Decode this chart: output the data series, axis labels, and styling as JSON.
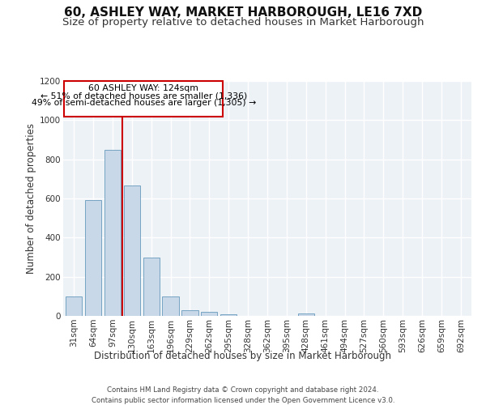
{
  "title": "60, ASHLEY WAY, MARKET HARBOROUGH, LE16 7XD",
  "subtitle": "Size of property relative to detached houses in Market Harborough",
  "xlabel": "Distribution of detached houses by size in Market Harborough",
  "ylabel": "Number of detached properties",
  "footer_line1": "Contains HM Land Registry data © Crown copyright and database right 2024.",
  "footer_line2": "Contains public sector information licensed under the Open Government Licence v3.0.",
  "categories": [
    "31sqm",
    "64sqm",
    "97sqm",
    "130sqm",
    "163sqm",
    "196sqm",
    "229sqm",
    "262sqm",
    "295sqm",
    "328sqm",
    "362sqm",
    "395sqm",
    "428sqm",
    "461sqm",
    "494sqm",
    "527sqm",
    "560sqm",
    "593sqm",
    "626sqm",
    "659sqm",
    "692sqm"
  ],
  "values": [
    98,
    590,
    848,
    665,
    300,
    100,
    30,
    22,
    10,
    0,
    0,
    0,
    12,
    0,
    0,
    0,
    0,
    0,
    0,
    0,
    0
  ],
  "bar_color": "#c8d8e8",
  "bar_edge_color": "#6699bb",
  "property_line_x": 2.5,
  "annotation_text_line1": "60 ASHLEY WAY: 124sqm",
  "annotation_text_line2": "← 51% of detached houses are smaller (1,336)",
  "annotation_text_line3": "49% of semi-detached houses are larger (1,305) →",
  "annotation_box_color": "#ffffff",
  "annotation_box_edge_color": "#cc0000",
  "line_color": "#cc0000",
  "ylim": [
    0,
    1200
  ],
  "yticks": [
    0,
    200,
    400,
    600,
    800,
    1000,
    1200
  ],
  "background_color": "#edf2f7",
  "grid_color": "#ffffff",
  "title_fontsize": 11,
  "subtitle_fontsize": 9.5,
  "axis_label_fontsize": 8.5,
  "tick_fontsize": 7.5,
  "footer_fontsize": 6.2
}
